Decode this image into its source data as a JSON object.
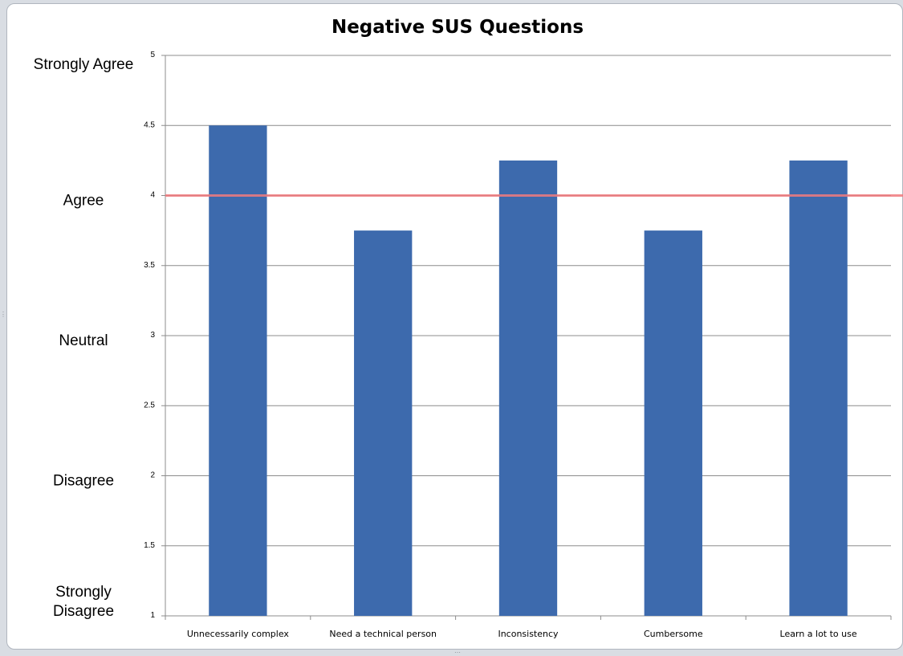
{
  "chart_data": {
    "type": "bar",
    "title": "Negative SUS Questions",
    "categories": [
      "Unnecessarily complex",
      "Need a technical person",
      "Inconsistency",
      "Cumbersome",
      "Learn a lot to use"
    ],
    "values": [
      4.5,
      3.75,
      4.25,
      3.75,
      4.25
    ],
    "ylim": [
      1,
      5
    ],
    "yticks": [
      "1",
      "1.5",
      "2",
      "2.5",
      "3",
      "3.5",
      "4",
      "4.5",
      "5"
    ],
    "y_scale_labels": [
      {
        "value": 5,
        "lines": [
          "Strongly Agree"
        ]
      },
      {
        "value": 4,
        "lines": [
          "Agree"
        ]
      },
      {
        "value": 3,
        "lines": [
          "Neutral"
        ]
      },
      {
        "value": 2,
        "lines": [
          "Disagree"
        ]
      },
      {
        "value": 1,
        "lines": [
          "Strongly",
          "Disagree"
        ]
      }
    ],
    "reference_line": {
      "value": 4
    },
    "grid": true,
    "legend": "none",
    "colors": {
      "bar": "#3d6aad",
      "reference_line": "#f07a7e",
      "grid": "#8c8c8c"
    }
  }
}
